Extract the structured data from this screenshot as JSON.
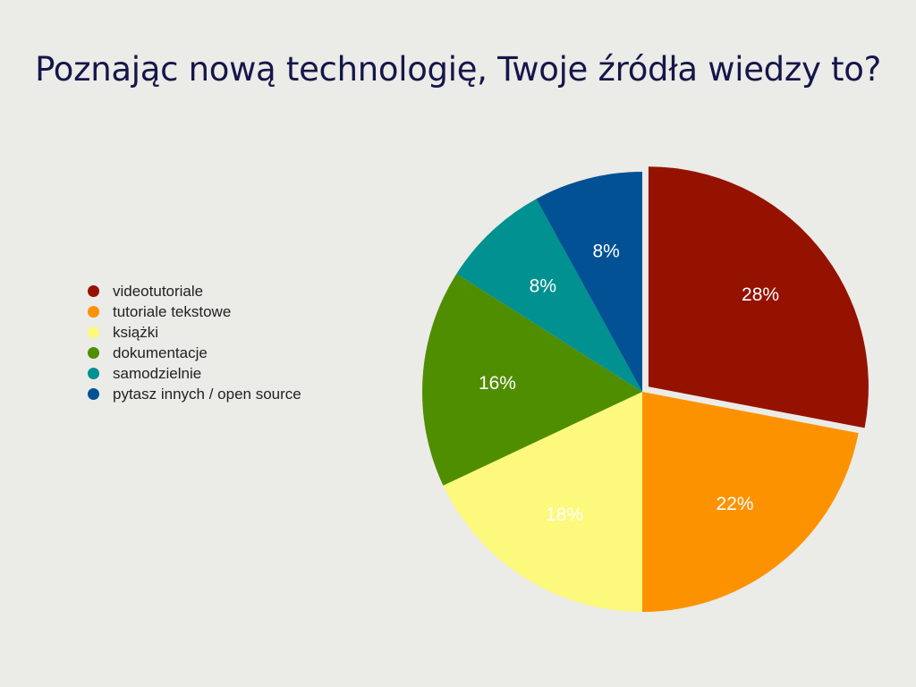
{
  "chart_data": {
    "type": "pie",
    "title": "Poznając nową technologię, Twoje źródła wiedzy to?",
    "legend_position": "left",
    "slices": [
      {
        "label": "videotutoriale",
        "value": 28,
        "display": "28%",
        "color": "#951200",
        "exploded": true
      },
      {
        "label": "tutoriale tekstowe",
        "value": 22,
        "display": "22%",
        "color": "#fd9200",
        "exploded": false
      },
      {
        "label": "książki",
        "value": 18,
        "display": "18%",
        "color": "#fdf97c",
        "exploded": false
      },
      {
        "label": "dokumentacje",
        "value": 16,
        "display": "16%",
        "color": "#4f8e00",
        "exploded": false
      },
      {
        "label": "samodzielnie",
        "value": 8,
        "display": "8%",
        "color": "#009190",
        "exploded": false
      },
      {
        "label": "pytasz innych / open source",
        "value": 8,
        "display": "8%",
        "color": "#025194",
        "exploded": false
      }
    ]
  }
}
